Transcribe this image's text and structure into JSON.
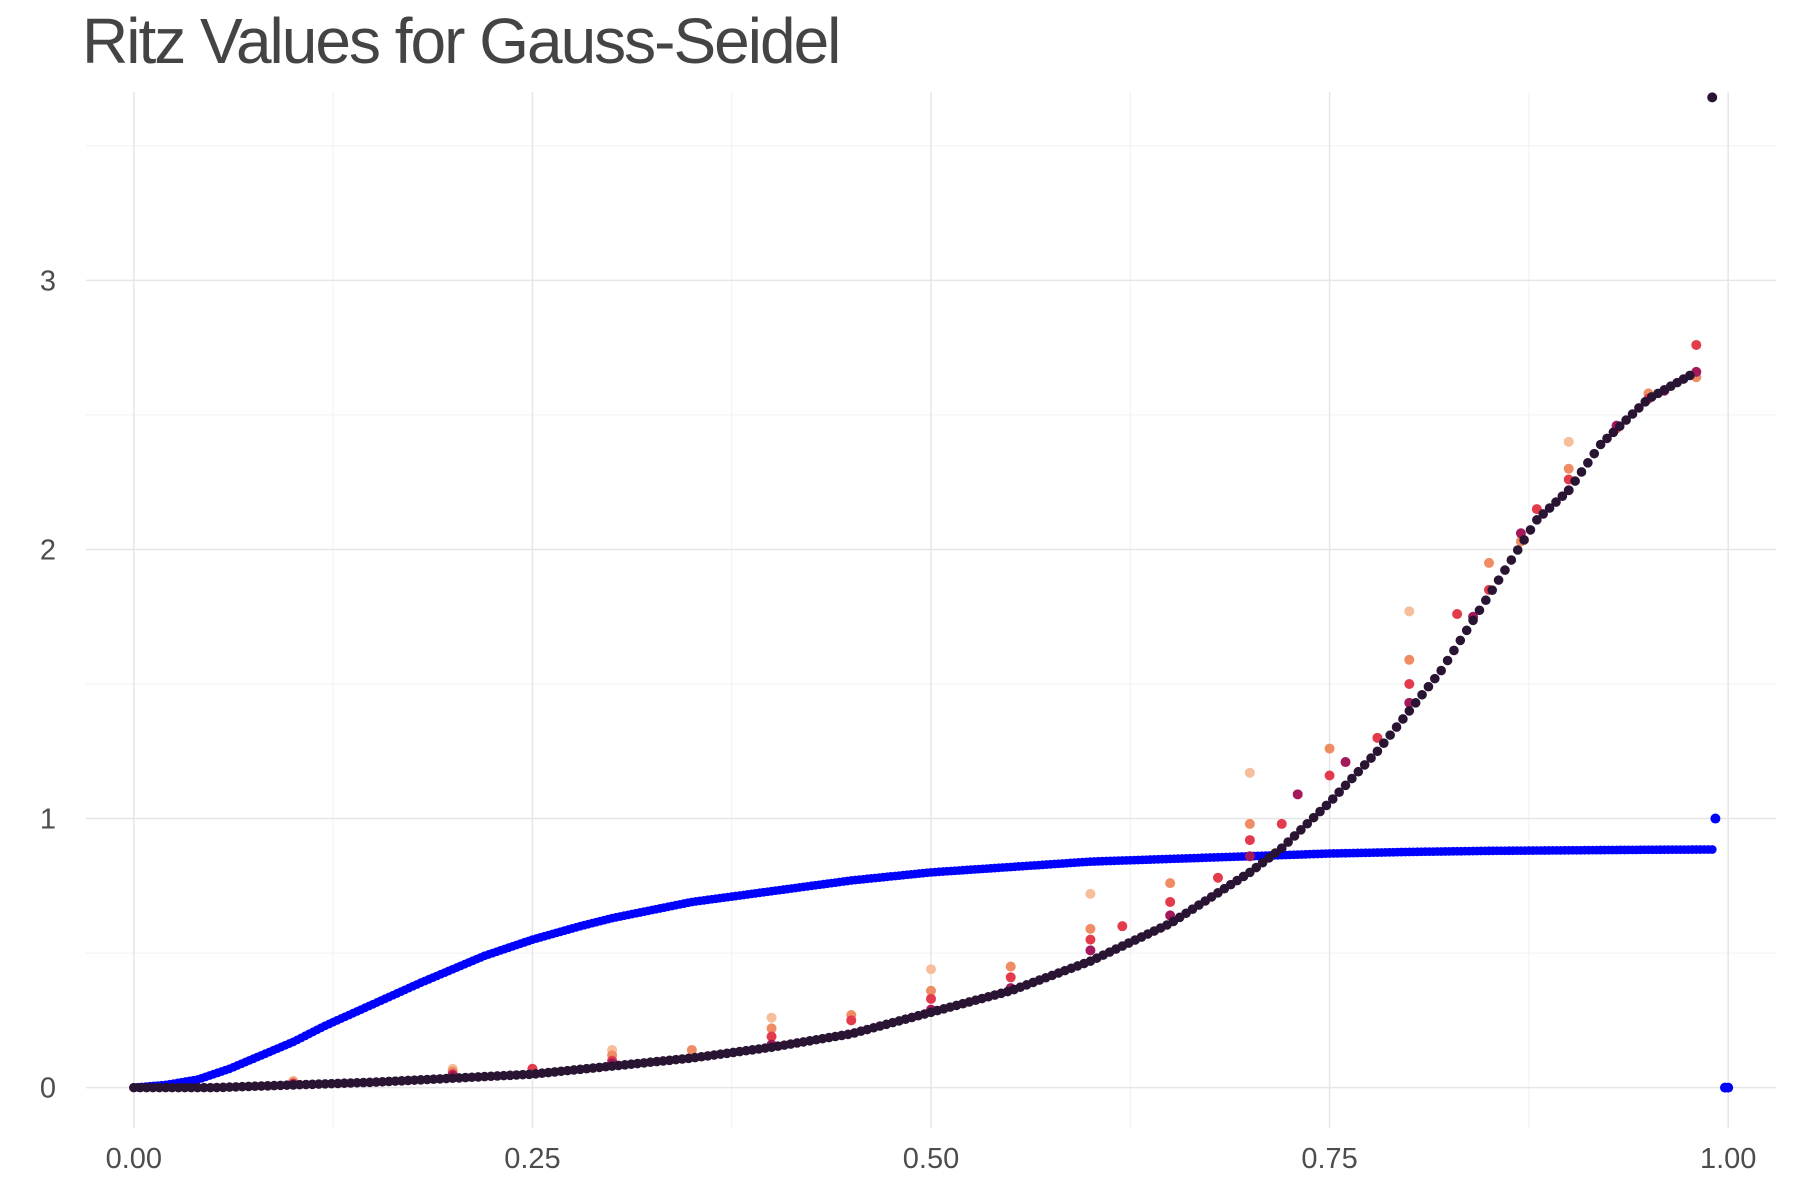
{
  "chart_data": {
    "type": "scatter",
    "title": "Ritz Values for Gauss-Seidel",
    "xlabel": "",
    "ylabel": "",
    "xlim": [
      -0.03,
      1.03
    ],
    "ylim": [
      -0.15,
      3.7
    ],
    "grid": true,
    "legend": "none",
    "x_ticks": [
      {
        "value": 0.0,
        "label": "0.00"
      },
      {
        "value": 0.25,
        "label": "0.25"
      },
      {
        "value": 0.5,
        "label": "0.50"
      },
      {
        "value": 0.75,
        "label": "0.75"
      },
      {
        "value": 1.0,
        "label": "1.00"
      }
    ],
    "y_ticks": [
      {
        "value": 0,
        "label": "0"
      },
      {
        "value": 1,
        "label": "1"
      },
      {
        "value": 2,
        "label": "2"
      },
      {
        "value": 3,
        "label": "3"
      }
    ],
    "series": [
      {
        "name": "reference-curve",
        "color": "#0000ff",
        "x": [
          0.0,
          0.02,
          0.04,
          0.06,
          0.08,
          0.1,
          0.12,
          0.15,
          0.18,
          0.2,
          0.22,
          0.25,
          0.28,
          0.3,
          0.35,
          0.4,
          0.45,
          0.5,
          0.55,
          0.6,
          0.65,
          0.7,
          0.75,
          0.8,
          0.85,
          0.9,
          0.95,
          0.99,
          0.992,
          0.998,
          1.0
        ],
        "y": [
          0.0,
          0.01,
          0.03,
          0.07,
          0.12,
          0.17,
          0.23,
          0.31,
          0.39,
          0.44,
          0.49,
          0.55,
          0.6,
          0.63,
          0.69,
          0.73,
          0.77,
          0.8,
          0.82,
          0.84,
          0.85,
          0.86,
          0.87,
          0.876,
          0.88,
          0.882,
          0.884,
          0.885,
          1.0,
          0.0,
          0.0
        ]
      },
      {
        "name": "ritz-light",
        "color": "#f6be9a",
        "x": [
          0.1,
          0.2,
          0.3,
          0.4,
          0.5,
          0.6,
          0.7,
          0.8,
          0.9
        ],
        "y": [
          0.025,
          0.07,
          0.14,
          0.26,
          0.44,
          0.72,
          1.17,
          1.77,
          2.4
        ]
      },
      {
        "name": "ritz-orange",
        "color": "#f08c63",
        "x": [
          0.1,
          0.2,
          0.3,
          0.35,
          0.4,
          0.45,
          0.5,
          0.55,
          0.6,
          0.65,
          0.7,
          0.75,
          0.8,
          0.85,
          0.87,
          0.9,
          0.95,
          0.98
        ],
        "y": [
          0.02,
          0.06,
          0.12,
          0.14,
          0.22,
          0.27,
          0.36,
          0.45,
          0.59,
          0.76,
          0.98,
          1.26,
          1.59,
          1.95,
          2.03,
          2.3,
          2.58,
          2.64
        ]
      },
      {
        "name": "ritz-red",
        "color": "#e33b4b",
        "x": [
          0.1,
          0.2,
          0.25,
          0.3,
          0.4,
          0.45,
          0.5,
          0.55,
          0.6,
          0.62,
          0.65,
          0.68,
          0.7,
          0.72,
          0.75,
          0.78,
          0.8,
          0.83,
          0.85,
          0.88,
          0.9,
          0.93,
          0.95,
          0.98
        ],
        "y": [
          0.015,
          0.05,
          0.07,
          0.1,
          0.19,
          0.25,
          0.33,
          0.41,
          0.55,
          0.6,
          0.69,
          0.78,
          0.92,
          0.98,
          1.16,
          1.3,
          1.5,
          1.76,
          1.85,
          2.15,
          2.26,
          2.45,
          2.56,
          2.76
        ]
      },
      {
        "name": "ritz-purple",
        "color": "#a3195b",
        "x": [
          0.1,
          0.2,
          0.3,
          0.4,
          0.5,
          0.55,
          0.6,
          0.65,
          0.7,
          0.73,
          0.76,
          0.8,
          0.84,
          0.87,
          0.9,
          0.93,
          0.96,
          0.98
        ],
        "y": [
          0.012,
          0.045,
          0.09,
          0.16,
          0.29,
          0.37,
          0.51,
          0.64,
          0.86,
          1.09,
          1.21,
          1.43,
          1.75,
          2.06,
          2.22,
          2.46,
          2.59,
          2.66
        ]
      },
      {
        "name": "ritz-dark",
        "color": "#2a1433",
        "x": [
          0.0,
          0.05,
          0.1,
          0.15,
          0.2,
          0.25,
          0.3,
          0.35,
          0.4,
          0.45,
          0.5,
          0.55,
          0.6,
          0.65,
          0.7,
          0.72,
          0.75,
          0.78,
          0.8,
          0.82,
          0.85,
          0.88,
          0.9,
          0.92,
          0.95,
          0.98,
          0.99
        ],
        "y": [
          0.0,
          0.0,
          0.01,
          0.02,
          0.035,
          0.05,
          0.08,
          0.11,
          0.15,
          0.2,
          0.28,
          0.36,
          0.47,
          0.61,
          0.8,
          0.89,
          1.06,
          1.25,
          1.4,
          1.55,
          1.83,
          2.11,
          2.22,
          2.39,
          2.56,
          2.66,
          3.68
        ]
      }
    ]
  }
}
